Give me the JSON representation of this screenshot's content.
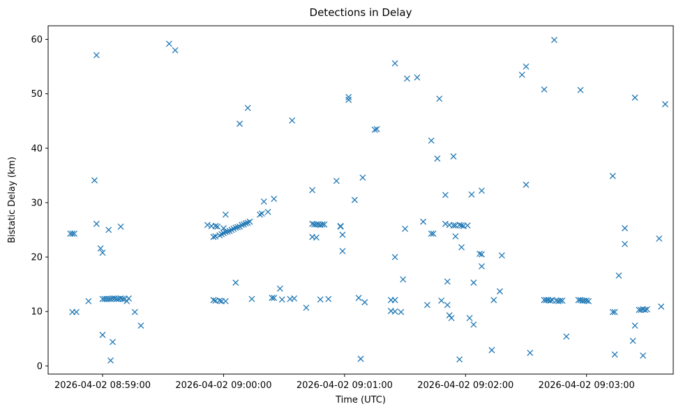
{
  "chart_data": {
    "type": "scatter",
    "title": "Detections in Delay",
    "xlabel": "Time (UTC)",
    "ylabel": "Bistatic Delay (km)",
    "marker": "x",
    "marker_color": "#1f77b4",
    "grid": false,
    "xlim": [
      "2026-04-02 08:58:33",
      "2026-04-02 09:03:43"
    ],
    "ylim": [
      -1.5,
      62.5
    ],
    "x_ticks": [
      "2026-04-02 08:59:00",
      "2026-04-02 09:00:00",
      "2026-04-02 09:01:00",
      "2026-04-02 09:02:00",
      "2026-04-02 09:03:00"
    ],
    "y_ticks": [
      0,
      10,
      20,
      30,
      40,
      50,
      60
    ],
    "points": [
      [
        "2026-04-02 08:58:44",
        24.3
      ],
      [
        "2026-04-02 08:58:45",
        24.3
      ],
      [
        "2026-04-02 08:58:46",
        24.3
      ],
      [
        "2026-04-02 08:58:45",
        9.9
      ],
      [
        "2026-04-02 08:58:47",
        9.9
      ],
      [
        "2026-04-02 08:58:53",
        11.9
      ],
      [
        "2026-04-02 08:58:57",
        57.1
      ],
      [
        "2026-04-02 08:58:56",
        34.1
      ],
      [
        "2026-04-02 08:58:57",
        26.1
      ],
      [
        "2026-04-02 08:58:59",
        21.6
      ],
      [
        "2026-04-02 08:59:00",
        20.8
      ],
      [
        "2026-04-02 08:59:03",
        25.0
      ],
      [
        "2026-04-02 08:59:00",
        12.3
      ],
      [
        "2026-04-02 08:59:01",
        12.3
      ],
      [
        "2026-04-02 08:59:02",
        12.3
      ],
      [
        "2026-04-02 08:59:03",
        12.3
      ],
      [
        "2026-04-02 08:59:04",
        12.3
      ],
      [
        "2026-04-02 08:59:05",
        12.4
      ],
      [
        "2026-04-02 08:59:06",
        12.4
      ],
      [
        "2026-04-02 08:59:07",
        12.3
      ],
      [
        "2026-04-02 08:59:08",
        12.3
      ],
      [
        "2026-04-02 08:59:09",
        12.4
      ],
      [
        "2026-04-02 08:59:10",
        12.3
      ],
      [
        "2026-04-02 08:59:11",
        12.3
      ],
      [
        "2026-04-02 08:59:12",
        11.9
      ],
      [
        "2026-04-02 08:59:13",
        12.4
      ],
      [
        "2026-04-02 08:59:09",
        25.6
      ],
      [
        "2026-04-02 08:59:00",
        5.7
      ],
      [
        "2026-04-02 08:59:05",
        4.4
      ],
      [
        "2026-04-02 08:59:04",
        1.0
      ],
      [
        "2026-04-02 08:59:16",
        9.9
      ],
      [
        "2026-04-02 08:59:19",
        7.4
      ],
      [
        "2026-04-02 08:59:33",
        59.2
      ],
      [
        "2026-04-02 08:59:36",
        58.0
      ],
      [
        "2026-04-02 08:59:52",
        25.9
      ],
      [
        "2026-04-02 08:59:54",
        25.7
      ],
      [
        "2026-04-02 08:59:55",
        23.7
      ],
      [
        "2026-04-02 08:59:56",
        25.7
      ],
      [
        "2026-04-02 08:59:56",
        23.8
      ],
      [
        "2026-04-02 08:59:57",
        25.6
      ],
      [
        "2026-04-02 08:59:58",
        24.0
      ],
      [
        "2026-04-02 08:59:59",
        24.2
      ],
      [
        "2026-04-02 09:00:00",
        25.3
      ],
      [
        "2026-04-02 09:00:00",
        24.4
      ],
      [
        "2026-04-02 09:00:01",
        24.6
      ],
      [
        "2026-04-02 09:00:02",
        24.7
      ],
      [
        "2026-04-02 09:00:03",
        24.8
      ],
      [
        "2026-04-02 09:00:04",
        25.0
      ],
      [
        "2026-04-02 09:00:05",
        25.2
      ],
      [
        "2026-04-02 09:00:06",
        25.4
      ],
      [
        "2026-04-02 09:00:07",
        25.5
      ],
      [
        "2026-04-02 09:00:08",
        25.6
      ],
      [
        "2026-04-02 09:00:09",
        25.9
      ],
      [
        "2026-04-02 09:00:10",
        26.0
      ],
      [
        "2026-04-02 09:00:11",
        26.2
      ],
      [
        "2026-04-02 09:00:12",
        26.3
      ],
      [
        "2026-04-02 09:00:13",
        26.5
      ],
      [
        "2026-04-02 09:00:01",
        27.8
      ],
      [
        "2026-04-02 08:59:55",
        12.1
      ],
      [
        "2026-04-02 08:59:56",
        12.0
      ],
      [
        "2026-04-02 08:59:58",
        12.0
      ],
      [
        "2026-04-02 08:59:59",
        11.9
      ],
      [
        "2026-04-02 09:00:01",
        11.9
      ],
      [
        "2026-04-02 09:00:06",
        15.3
      ],
      [
        "2026-04-02 09:00:14",
        12.3
      ],
      [
        "2026-04-02 09:00:08",
        44.5
      ],
      [
        "2026-04-02 09:00:12",
        47.4
      ],
      [
        "2026-04-02 09:00:18",
        27.8
      ],
      [
        "2026-04-02 09:00:19",
        28.0
      ],
      [
        "2026-04-02 09:00:20",
        30.2
      ],
      [
        "2026-04-02 09:00:22",
        28.3
      ],
      [
        "2026-04-02 09:00:25",
        30.7
      ],
      [
        "2026-04-02 09:00:24",
        12.5
      ],
      [
        "2026-04-02 09:00:25",
        12.5
      ],
      [
        "2026-04-02 09:00:28",
        14.2
      ],
      [
        "2026-04-02 09:00:29",
        12.2
      ],
      [
        "2026-04-02 09:00:33",
        12.3
      ],
      [
        "2026-04-02 09:00:35",
        12.4
      ],
      [
        "2026-04-02 09:00:34",
        45.1
      ],
      [
        "2026-04-02 09:00:41",
        10.7
      ],
      [
        "2026-04-02 09:00:44",
        32.3
      ],
      [
        "2026-04-02 09:00:44",
        26.1
      ],
      [
        "2026-04-02 09:00:45",
        26.0
      ],
      [
        "2026-04-02 09:00:46",
        26.0
      ],
      [
        "2026-04-02 09:00:47",
        26.0
      ],
      [
        "2026-04-02 09:00:48",
        25.9
      ],
      [
        "2026-04-02 09:00:49",
        26.0
      ],
      [
        "2026-04-02 09:00:50",
        26.0
      ],
      [
        "2026-04-02 09:00:44",
        23.7
      ],
      [
        "2026-04-02 09:00:46",
        23.6
      ],
      [
        "2026-04-02 09:00:48",
        12.2
      ],
      [
        "2026-04-02 09:00:52",
        12.3
      ],
      [
        "2026-04-02 09:00:56",
        34.0
      ],
      [
        "2026-04-02 09:00:58",
        25.6
      ],
      [
        "2026-04-02 09:00:58",
        25.7
      ],
      [
        "2026-04-02 09:00:59",
        24.1
      ],
      [
        "2026-04-02 09:00:59",
        21.1
      ],
      [
        "2026-04-02 09:01:02",
        48.9
      ],
      [
        "2026-04-02 09:01:02",
        49.4
      ],
      [
        "2026-04-02 09:01:05",
        30.5
      ],
      [
        "2026-04-02 09:01:09",
        34.6
      ],
      [
        "2026-04-02 09:01:07",
        12.5
      ],
      [
        "2026-04-02 09:01:08",
        1.3
      ],
      [
        "2026-04-02 09:01:10",
        11.7
      ],
      [
        "2026-04-02 09:01:15",
        43.4
      ],
      [
        "2026-04-02 09:01:16",
        43.5
      ],
      [
        "2026-04-02 09:01:23",
        12.1
      ],
      [
        "2026-04-02 09:01:23",
        10.1
      ],
      [
        "2026-04-02 09:01:25",
        10.0
      ],
      [
        "2026-04-02 09:01:25",
        12.1
      ],
      [
        "2026-04-02 09:01:28",
        9.9
      ],
      [
        "2026-04-02 09:01:25",
        20.0
      ],
      [
        "2026-04-02 09:01:25",
        55.6
      ],
      [
        "2026-04-02 09:01:29",
        15.9
      ],
      [
        "2026-04-02 09:01:30",
        25.2
      ],
      [
        "2026-04-02 09:01:31",
        52.8
      ],
      [
        "2026-04-02 09:01:36",
        53.0
      ],
      [
        "2026-04-02 09:01:39",
        26.5
      ],
      [
        "2026-04-02 09:01:41",
        11.2
      ],
      [
        "2026-04-02 09:01:43",
        41.4
      ],
      [
        "2026-04-02 09:01:43",
        24.3
      ],
      [
        "2026-04-02 09:01:44",
        24.3
      ],
      [
        "2026-04-02 09:01:46",
        38.1
      ],
      [
        "2026-04-02 09:01:47",
        49.1
      ],
      [
        "2026-04-02 09:01:48",
        12.0
      ],
      [
        "2026-04-02 09:01:50",
        31.4
      ],
      [
        "2026-04-02 09:01:51",
        15.5
      ],
      [
        "2026-04-02 09:01:51",
        11.2
      ],
      [
        "2026-04-02 09:01:52",
        9.3
      ],
      [
        "2026-04-02 09:01:53",
        8.8
      ],
      [
        "2026-04-02 09:01:50",
        26.1
      ],
      [
        "2026-04-02 09:01:52",
        25.9
      ],
      [
        "2026-04-02 09:01:54",
        25.8
      ],
      [
        "2026-04-02 09:01:55",
        25.8
      ],
      [
        "2026-04-02 09:01:57",
        25.9
      ],
      [
        "2026-04-02 09:01:58",
        25.8
      ],
      [
        "2026-04-02 09:01:59",
        25.7
      ],
      [
        "2026-04-02 09:02:01",
        25.8
      ],
      [
        "2026-04-02 09:01:54",
        38.5
      ],
      [
        "2026-04-02 09:01:55",
        23.8
      ],
      [
        "2026-04-02 09:01:57",
        1.2
      ],
      [
        "2026-04-02 09:01:58",
        21.8
      ],
      [
        "2026-04-02 09:02:02",
        8.8
      ],
      [
        "2026-04-02 09:02:03",
        31.5
      ],
      [
        "2026-04-02 09:02:04",
        15.3
      ],
      [
        "2026-04-02 09:02:04",
        7.6
      ],
      [
        "2026-04-02 09:02:07",
        20.6
      ],
      [
        "2026-04-02 09:02:08",
        20.5
      ],
      [
        "2026-04-02 09:02:08",
        18.3
      ],
      [
        "2026-04-02 09:02:08",
        32.2
      ],
      [
        "2026-04-02 09:02:13",
        2.9
      ],
      [
        "2026-04-02 09:02:14",
        12.1
      ],
      [
        "2026-04-02 09:02:17",
        13.7
      ],
      [
        "2026-04-02 09:02:18",
        20.3
      ],
      [
        "2026-04-02 09:02:28",
        53.5
      ],
      [
        "2026-04-02 09:02:30",
        55.0
      ],
      [
        "2026-04-02 09:02:30",
        33.3
      ],
      [
        "2026-04-02 09:02:32",
        2.4
      ],
      [
        "2026-04-02 09:02:39",
        50.8
      ],
      [
        "2026-04-02 09:02:39",
        12.1
      ],
      [
        "2026-04-02 09:02:40",
        12.1
      ],
      [
        "2026-04-02 09:02:41",
        12.1
      ],
      [
        "2026-04-02 09:02:42",
        12.0
      ],
      [
        "2026-04-02 09:02:43",
        12.1
      ],
      [
        "2026-04-02 09:02:45",
        12.0
      ],
      [
        "2026-04-02 09:02:46",
        11.9
      ],
      [
        "2026-04-02 09:02:47",
        12.0
      ],
      [
        "2026-04-02 09:02:48",
        12.0
      ],
      [
        "2026-04-02 09:02:44",
        59.9
      ],
      [
        "2026-04-02 09:02:50",
        5.4
      ],
      [
        "2026-04-02 09:02:57",
        50.7
      ],
      [
        "2026-04-02 09:02:56",
        12.1
      ],
      [
        "2026-04-02 09:02:57",
        12.1
      ],
      [
        "2026-04-02 09:02:58",
        12.0
      ],
      [
        "2026-04-02 09:02:59",
        12.0
      ],
      [
        "2026-04-02 09:03:00",
        12.0
      ],
      [
        "2026-04-02 09:03:01",
        11.9
      ],
      [
        "2026-04-02 09:03:13",
        34.9
      ],
      [
        "2026-04-02 09:03:13",
        9.9
      ],
      [
        "2026-04-02 09:03:14",
        9.9
      ],
      [
        "2026-04-02 09:03:14",
        2.1
      ],
      [
        "2026-04-02 09:03:16",
        16.6
      ],
      [
        "2026-04-02 09:03:19",
        25.3
      ],
      [
        "2026-04-02 09:03:19",
        22.4
      ],
      [
        "2026-04-02 09:03:23",
        4.6
      ],
      [
        "2026-04-02 09:03:24",
        7.4
      ],
      [
        "2026-04-02 09:03:24",
        49.3
      ],
      [
        "2026-04-02 09:03:26",
        10.3
      ],
      [
        "2026-04-02 09:03:27",
        10.3
      ],
      [
        "2026-04-02 09:03:28",
        10.4
      ],
      [
        "2026-04-02 09:03:29",
        10.3
      ],
      [
        "2026-04-02 09:03:30",
        10.4
      ],
      [
        "2026-04-02 09:03:28",
        1.9
      ],
      [
        "2026-04-02 09:03:36",
        23.4
      ],
      [
        "2026-04-02 09:03:37",
        10.9
      ],
      [
        "2026-04-02 09:03:39",
        48.1
      ]
    ]
  }
}
